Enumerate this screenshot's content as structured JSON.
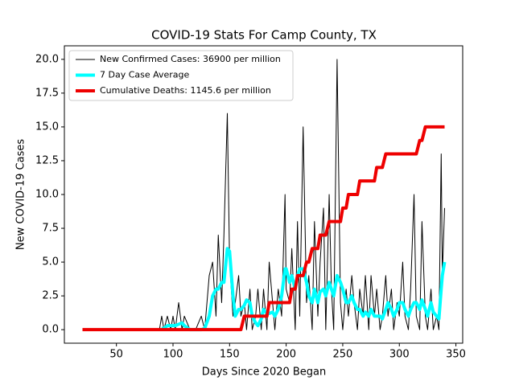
{
  "chart_data": {
    "type": "line",
    "title": "COVID-19 Stats For Camp County, TX",
    "x_label": "Days Since 2020 Began",
    "y_label": "New COVID-19 Cases",
    "x": [
      20,
      30,
      40,
      50,
      60,
      70,
      80,
      88,
      90,
      92,
      95,
      98,
      100,
      102,
      105,
      108,
      110,
      115,
      120,
      125,
      128,
      132,
      135,
      138,
      140,
      143,
      145,
      148,
      150,
      153,
      155,
      158,
      160,
      163,
      165,
      168,
      170,
      173,
      175,
      178,
      180,
      183,
      185,
      188,
      190,
      193,
      196,
      199,
      200,
      203,
      205,
      208,
      210,
      212,
      215,
      218,
      220,
      223,
      225,
      228,
      230,
      233,
      235,
      238,
      240,
      242,
      245,
      248,
      250,
      253,
      255,
      258,
      260,
      263,
      265,
      268,
      270,
      273,
      275,
      278,
      280,
      283,
      285,
      288,
      290,
      293,
      295,
      298,
      300,
      303,
      305,
      308,
      310,
      313,
      315,
      318,
      320,
      323,
      325,
      328,
      330,
      333,
      335,
      337,
      338,
      340
    ],
    "series": [
      {
        "name": "New Confirmed Cases: 36900 per million",
        "color": "#000000",
        "width": 1,
        "values": [
          0,
          0,
          0,
          0,
          0,
          0,
          0,
          0,
          1,
          0,
          1,
          0,
          1,
          0,
          2,
          0,
          1,
          0,
          0,
          1,
          0,
          4,
          5,
          1,
          7,
          2,
          7,
          16,
          5,
          1,
          2,
          4,
          1,
          2,
          0,
          3,
          0,
          1,
          3,
          0,
          3,
          0,
          5,
          2,
          0,
          3,
          1,
          10,
          3,
          2,
          6,
          0,
          8,
          1,
          15,
          2,
          4,
          0,
          8,
          1,
          5,
          9,
          0,
          10,
          3,
          0,
          20,
          2,
          0,
          3,
          1,
          4,
          2,
          0,
          3,
          1,
          4,
          0,
          4,
          1,
          3,
          0,
          1,
          4,
          1,
          3,
          0,
          2,
          1,
          5,
          1,
          0,
          3,
          10,
          1,
          0,
          8,
          1,
          0,
          3,
          0,
          1,
          0,
          13,
          4,
          9
        ]
      },
      {
        "name": "7 Day Case Average",
        "color": "#00ffff",
        "width": 4,
        "values": [
          null,
          null,
          null,
          null,
          null,
          null,
          null,
          null,
          0.1,
          0.1,
          0.3,
          0.3,
          0.3,
          0.3,
          0.4,
          0.5,
          0.3,
          0,
          0,
          0,
          0.1,
          1,
          2.5,
          3,
          3,
          3.5,
          3.5,
          6,
          5.8,
          2.5,
          1,
          1.5,
          1.5,
          1.8,
          2.2,
          2,
          1,
          0.5,
          0.3,
          0.8,
          1.5,
          1.2,
          1.2,
          1.3,
          1,
          1.5,
          2.5,
          4.5,
          4.5,
          3.5,
          4,
          3,
          4,
          4.5,
          4.5,
          3.5,
          2.5,
          2,
          3,
          2,
          2.8,
          3,
          2.5,
          3.5,
          3,
          2.5,
          4,
          3.5,
          3,
          2,
          2,
          2.5,
          2,
          1.5,
          1.5,
          1,
          1.3,
          1,
          1.5,
          1,
          1,
          1,
          0.8,
          1.5,
          2,
          1.5,
          1,
          1.5,
          2,
          2,
          1.5,
          1,
          1.5,
          2,
          2,
          1.5,
          2.2,
          1.5,
          1,
          2,
          1.3,
          1,
          0.8,
          3,
          4,
          5
        ]
      },
      {
        "name": "Cumulative Deaths: 1145.6 per million",
        "color": "#ee0000",
        "width": 4,
        "values": [
          0,
          0,
          0,
          0,
          0,
          0,
          0,
          0,
          0,
          0,
          0,
          0,
          0,
          0,
          0,
          0,
          0,
          0,
          0,
          0,
          0,
          0,
          0,
          0,
          0,
          0,
          0,
          0,
          0,
          0,
          0,
          0,
          0,
          1,
          1,
          1,
          1,
          1,
          1,
          1,
          1,
          1,
          2,
          2,
          2,
          2,
          2,
          2,
          2,
          2,
          3,
          3,
          4,
          4,
          4,
          5,
          5,
          6,
          6,
          6,
          7,
          7,
          7,
          8,
          8,
          8,
          8,
          8,
          9,
          9,
          10,
          10,
          10,
          10,
          11,
          11,
          11,
          11,
          11,
          11,
          12,
          12,
          12,
          13,
          13,
          13,
          13,
          13,
          13,
          13,
          13,
          13,
          13,
          13,
          13,
          14,
          14,
          15,
          15,
          15,
          15,
          15,
          15,
          15,
          15,
          15
        ]
      }
    ],
    "xlim": [
      4,
      356
    ],
    "ylim": [
      -1,
      21
    ],
    "xticks": [
      50,
      100,
      150,
      200,
      250,
      300,
      350
    ],
    "yticks": [
      {
        "value": 0,
        "label": "0.0"
      },
      {
        "value": 2.5,
        "label": "2.5"
      },
      {
        "value": 5,
        "label": "5.0"
      },
      {
        "value": 7.5,
        "label": "7.5"
      },
      {
        "value": 10,
        "label": "10.0"
      },
      {
        "value": 12.5,
        "label": "12.5"
      },
      {
        "value": 15,
        "label": "15.0"
      },
      {
        "value": 17.5,
        "label": "17.5"
      },
      {
        "value": 20,
        "label": "20.0"
      }
    ],
    "legend_position": "upper-left"
  }
}
